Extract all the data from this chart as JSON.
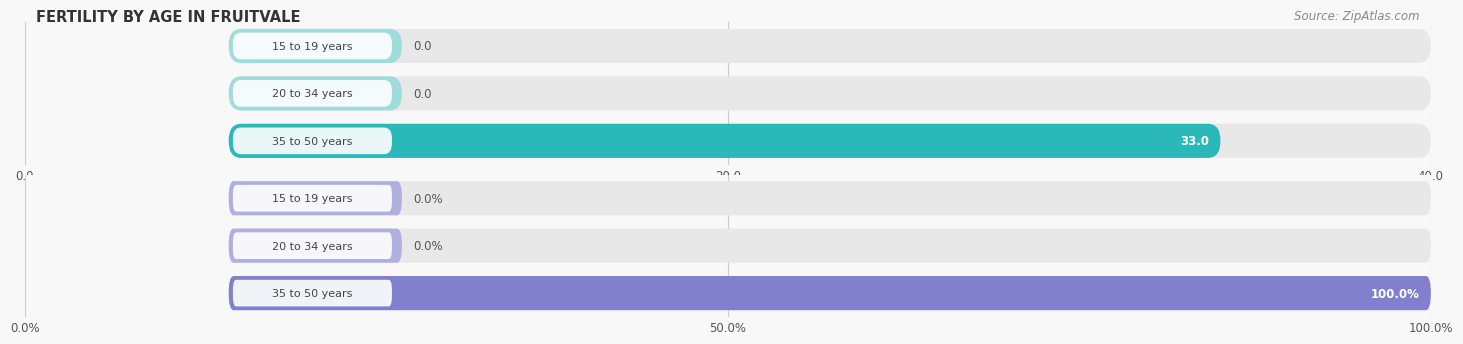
{
  "title": "FERTILITY BY AGE IN FRUITVALE",
  "source": "Source: ZipAtlas.com",
  "top_chart": {
    "categories": [
      "15 to 19 years",
      "20 to 34 years",
      "35 to 50 years"
    ],
    "values": [
      0.0,
      0.0,
      33.0
    ],
    "xlim": [
      0,
      40
    ],
    "xticks": [
      0.0,
      20.0,
      40.0
    ],
    "xtick_labels": [
      "0.0",
      "20.0",
      "40.0"
    ],
    "bar_color_active": "#2ab8b8",
    "bar_color_inactive": "#a0dcdc",
    "bar_bg_color": "#e8e8e8",
    "value_labels": [
      "0.0",
      "0.0",
      "33.0"
    ]
  },
  "bottom_chart": {
    "categories": [
      "15 to 19 years",
      "20 to 34 years",
      "35 to 50 years"
    ],
    "values": [
      0.0,
      0.0,
      100.0
    ],
    "xlim": [
      0,
      100
    ],
    "xticks": [
      0.0,
      50.0,
      100.0
    ],
    "xtick_labels": [
      "0.0%",
      "50.0%",
      "100.0%"
    ],
    "bar_color_active": "#8080cc",
    "bar_color_inactive": "#b0b0e0",
    "bar_bg_color": "#e8e8e8",
    "value_labels": [
      "0.0%",
      "0.0%",
      "100.0%"
    ]
  },
  "label_bg_color": "#ffffff",
  "label_text_color": "#444444",
  "title_color": "#333333",
  "source_color": "#888888",
  "fig_bg_color": "#f8f8f8"
}
